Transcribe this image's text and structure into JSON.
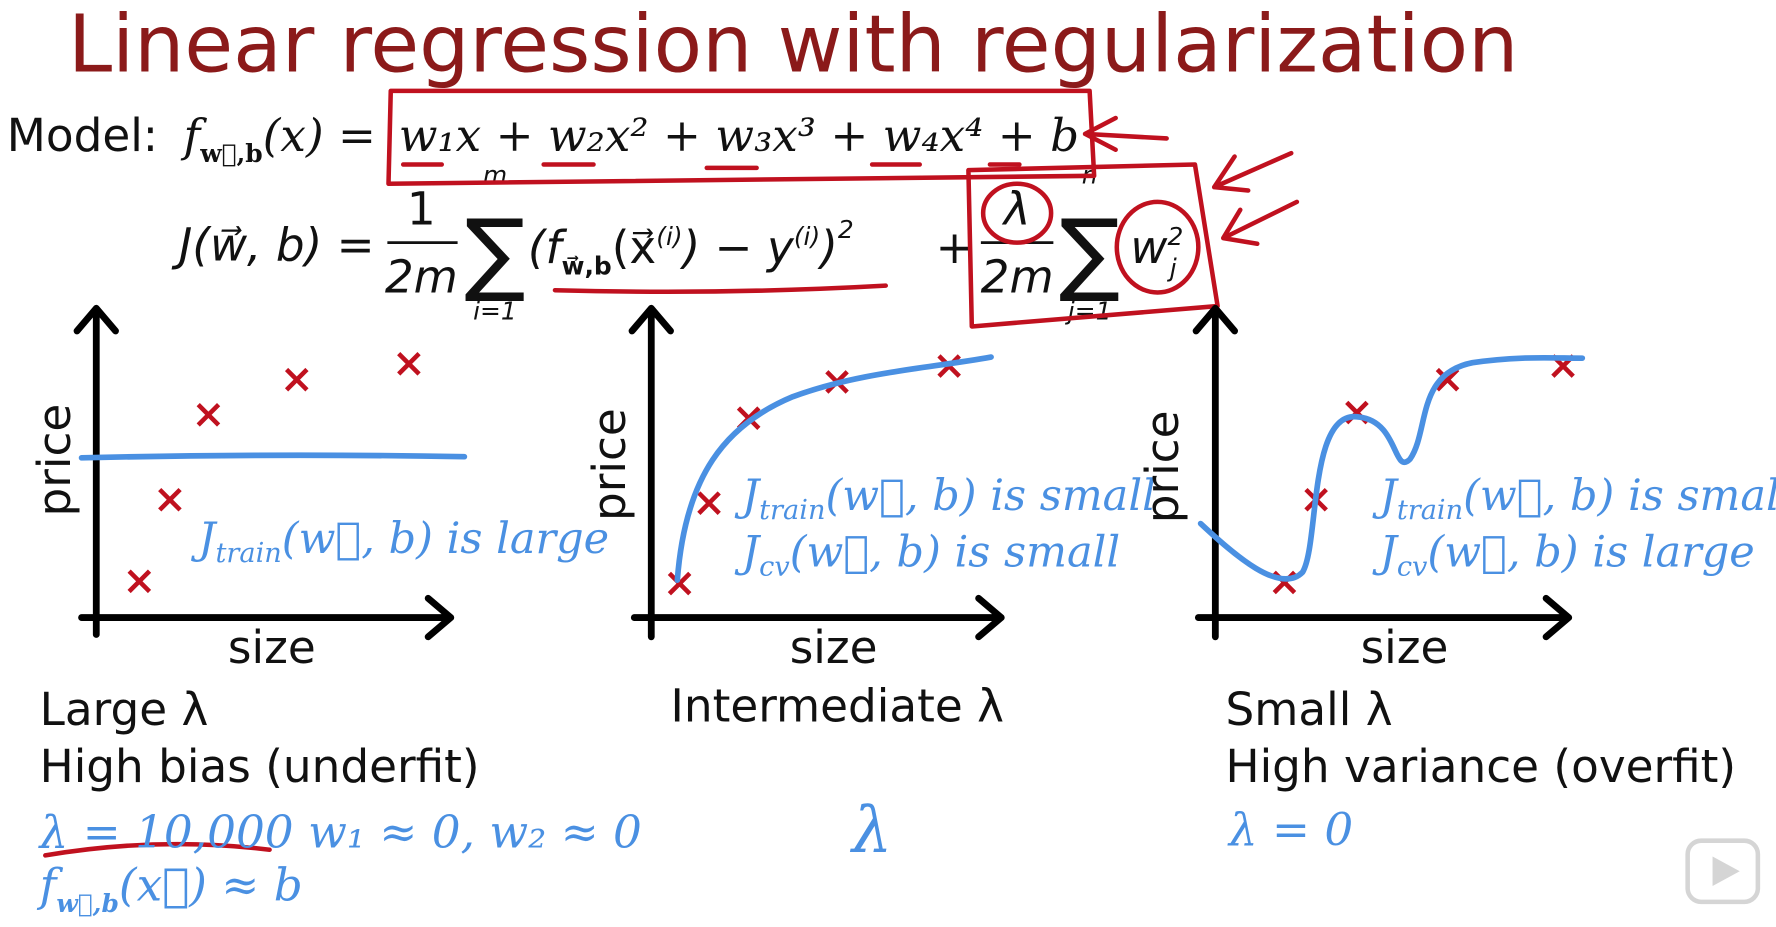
{
  "title": "Linear regression with regularization",
  "model": {
    "label": "Model:",
    "lhs": "f",
    "lhs_sub": "w⃗,b",
    "lhs_rest": "(x) =",
    "rhs": "w₁x + w₂x² + w₃x³ + w₄x⁴ + b"
  },
  "cost": {
    "lhs": "J(w⃗, b) =",
    "frac1_num": "1",
    "frac1_den": "2m",
    "sum1_top": "m",
    "sum1_bottom": "i=1",
    "term1": "(f",
    "term1_sub": "w⃗,b",
    "term1_mid": "(x⃗",
    "term1_sup": "(i)",
    "term1_minus": ") − y",
    "term1_sup2": "(i)",
    "term1_close": ")",
    "term1_pow": "2",
    "plus": "+",
    "frac2_num": "λ",
    "frac2_den": "2m",
    "sum2_top": "n",
    "sum2_bottom": "j=1",
    "term2": "w",
    "term2_sup": "2",
    "term2_sub": "j"
  },
  "panels": [
    {
      "y_label": "price",
      "x_label": "size",
      "notes": [
        {
          "symbol": "J",
          "sub": "train",
          "rest": "(w⃗, b)  is large"
        }
      ],
      "lambda_label": "Large λ",
      "regime": "High bias (underfit)",
      "lambda_value": "λ = 10,000",
      "weights": "w₁ ≈ 0, w₂ ≈ 0",
      "result": "f",
      "result_sub": "w⃗,b",
      "result_rest": "(x⃗) ≈ b"
    },
    {
      "y_label": "price",
      "x_label": "size",
      "notes": [
        {
          "symbol": "J",
          "sub": "train",
          "rest": "(w⃗, b) is small"
        },
        {
          "symbol": "J",
          "sub": "cv",
          "rest": "(w⃗, b) is small"
        }
      ],
      "lambda_label": "Intermediate λ",
      "lambda_symbol": "λ"
    },
    {
      "y_label": "price",
      "x_label": "size",
      "notes": [
        {
          "symbol": "J",
          "sub": "train",
          "rest": "(w⃗, b) is small"
        },
        {
          "symbol": "J",
          "sub": "cv",
          "rest": "(w⃗, b) is large"
        }
      ],
      "lambda_label": "Small λ",
      "regime": "High variance (overfit)",
      "lambda_value": "λ = 0"
    }
  ]
}
